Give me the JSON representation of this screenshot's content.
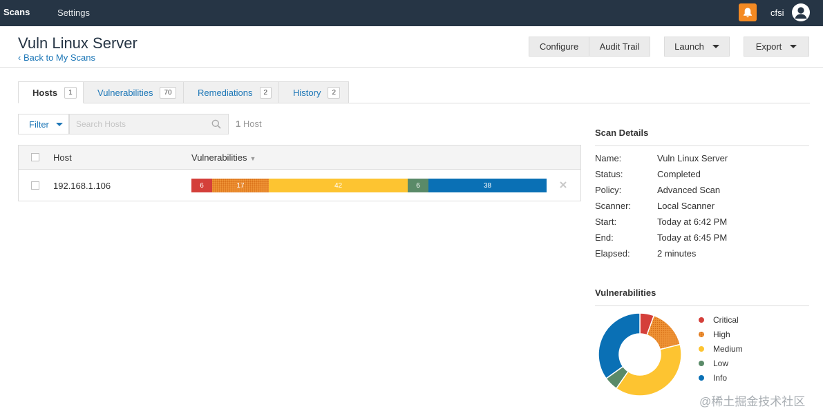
{
  "nav": {
    "scans": "Scans",
    "settings": "Settings",
    "user": "cfsi"
  },
  "header": {
    "title": "Vuln Linux Server",
    "back": "‹ Back to My Scans"
  },
  "buttons": {
    "configure": "Configure",
    "audit_trail": "Audit Trail",
    "launch": "Launch",
    "export": "Export"
  },
  "tabs": [
    {
      "label": "Hosts",
      "count": "1"
    },
    {
      "label": "Vulnerabilities",
      "count": "70"
    },
    {
      "label": "Remediations",
      "count": "2"
    },
    {
      "label": "History",
      "count": "2"
    }
  ],
  "filter": {
    "label": "Filter",
    "placeholder": "Search Hosts",
    "count": "1",
    "count_suffix": " Host"
  },
  "table": {
    "columns": {
      "host": "Host",
      "vulnerabilities": "Vulnerabilities"
    },
    "rows": [
      {
        "host": "192.168.1.106",
        "critical": "6",
        "high": "17",
        "medium": "42",
        "low": "6",
        "info": "38"
      }
    ]
  },
  "scan_details": {
    "title": "Scan Details",
    "items": [
      {
        "label": "Name:",
        "value": "Vuln Linux Server"
      },
      {
        "label": "Status:",
        "value": "Completed"
      },
      {
        "label": "Policy:",
        "value": "Advanced Scan"
      },
      {
        "label": "Scanner:",
        "value": "Local Scanner"
      },
      {
        "label": "Start:",
        "value": "Today at 6:42 PM"
      },
      {
        "label": "End:",
        "value": "Today at 6:45 PM"
      },
      {
        "label": "Elapsed:",
        "value": "2 minutes"
      }
    ]
  },
  "chart_data": {
    "type": "pie",
    "title": "Vulnerabilities",
    "categories": [
      "Critical",
      "High",
      "Medium",
      "Low",
      "Info"
    ],
    "values": [
      6,
      17,
      42,
      6,
      38
    ],
    "colors": [
      "#d43f3a",
      "#ee9336",
      "#fdc431",
      "#5a8a68",
      "#0a70b5"
    ],
    "legend": "right"
  },
  "watermark": "@稀土掘金技术社区",
  "colors": {
    "topbar": "#263545",
    "accent": "#1d77b7",
    "bell": "#f48a23"
  }
}
